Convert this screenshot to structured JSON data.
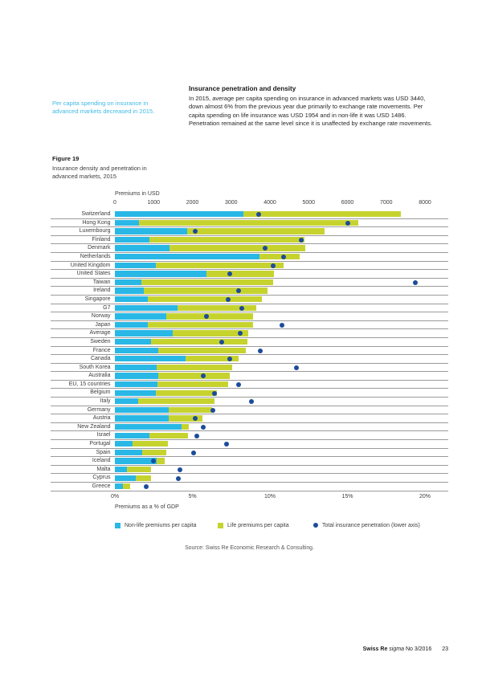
{
  "margin_note": {
    "text": "Per capita spending on insurance in advanced markets decreased in 2015."
  },
  "section": {
    "heading": "Insurance penetration and density",
    "body": "In 2015, average per capita spending on insurance in advanced markets was USD 3440, down almost 6% from the previous year due primarily to exchange rate movements. Per capita spending on life insurance was USD 1954 and in non-life it was USD 1486. Penetration remained at the same level since it is unaffected by exchange rate movements."
  },
  "figure": {
    "label": "Figure 19",
    "caption": "Insurance density and penetration in advanced markets, 2015",
    "source": "Source: Swiss Re Economic Research & Consulting."
  },
  "footer": {
    "brand": "Swiss Re",
    "publication": "sigma",
    "issue": "No 3/2016",
    "page": "23"
  },
  "colors": {
    "non_life": "#29B8E6",
    "life": "#C6D32F",
    "penetration": "#1C4B9A",
    "margin_note_text": "#3FB9E5",
    "separator_line": "#9B9B9B"
  },
  "chart_data": {
    "type": "bar",
    "subtype": "horizontal-stacked-with-scatter",
    "top_axis_label": "Premiums in USD",
    "bottom_axis_label": "Premiums as a % of GDP",
    "top_axis": {
      "min": 0,
      "max": 8000,
      "ticks": [
        0,
        1000,
        2000,
        3000,
        4000,
        5000,
        6000,
        7000,
        8000
      ]
    },
    "bottom_axis": {
      "min": 0,
      "max": 20,
      "tick_values": [
        0,
        5,
        10,
        15,
        20
      ],
      "tick_labels": [
        "0%",
        "5%",
        "10%",
        "15%",
        "20%"
      ]
    },
    "grid": "horizontal-row-separators",
    "legend_position": "below",
    "legend": [
      {
        "label": "Non-life premiums per capita",
        "swatch": "square",
        "color_key": "non_life"
      },
      {
        "label": "Life premiums per capita",
        "swatch": "square",
        "color_key": "life"
      },
      {
        "label": "Total insurance penetration (lower axis)",
        "swatch": "dot",
        "color_key": "penetration"
      }
    ],
    "categories": [
      "Switzerland",
      "Hong Kong",
      "Luxembourg",
      "Finland",
      "Denmark",
      "Netherlands",
      "United Kingdom",
      "United States",
      "Taiwan",
      "Ireland",
      "Singapore",
      "G7",
      "Norway",
      "Japan",
      "Average",
      "Sweden",
      "France",
      "Canada",
      "South Korea",
      "Australia",
      "EU, 15 countries",
      "Belgium",
      "Italy",
      "Germany",
      "Austria",
      "New Zealand",
      "Israel",
      "Portugal",
      "Spain",
      "Iceland",
      "Malta",
      "Cyprus",
      "Greece"
    ],
    "series": [
      {
        "name": "Non-life premiums per capita",
        "unit": "USD",
        "axis": "top",
        "values": [
          3320,
          630,
          1860,
          900,
          1410,
          3740,
          1050,
          2370,
          690,
          750,
          860,
          1620,
          1330,
          840,
          1486,
          930,
          1120,
          1820,
          1070,
          1120,
          1100,
          1050,
          610,
          1380,
          1390,
          1720,
          890,
          450,
          700,
          1070,
          320,
          530,
          210
        ]
      },
      {
        "name": "Life premiums per capita",
        "unit": "USD",
        "axis": "top",
        "values": [
          4050,
          5640,
          3550,
          3990,
          3510,
          1030,
          3310,
          1730,
          3400,
          3180,
          2930,
          2020,
          2240,
          2720,
          1954,
          2500,
          2260,
          1370,
          1960,
          1840,
          1830,
          1590,
          1960,
          1130,
          870,
          190,
          1000,
          920,
          630,
          210,
          620,
          400,
          190
        ]
      },
      {
        "name": "Total insurance penetration",
        "unit": "% of GDP",
        "axis": "bottom",
        "values": [
          9.3,
          15.0,
          5.2,
          12.0,
          9.7,
          10.9,
          10.2,
          7.4,
          19.4,
          8.0,
          7.3,
          8.2,
          5.9,
          10.8,
          8.1,
          6.9,
          9.4,
          7.4,
          11.7,
          5.7,
          8.0,
          6.4,
          8.8,
          6.3,
          5.2,
          5.7,
          5.3,
          7.2,
          5.1,
          2.5,
          4.2,
          4.1,
          2.0
        ]
      }
    ]
  }
}
